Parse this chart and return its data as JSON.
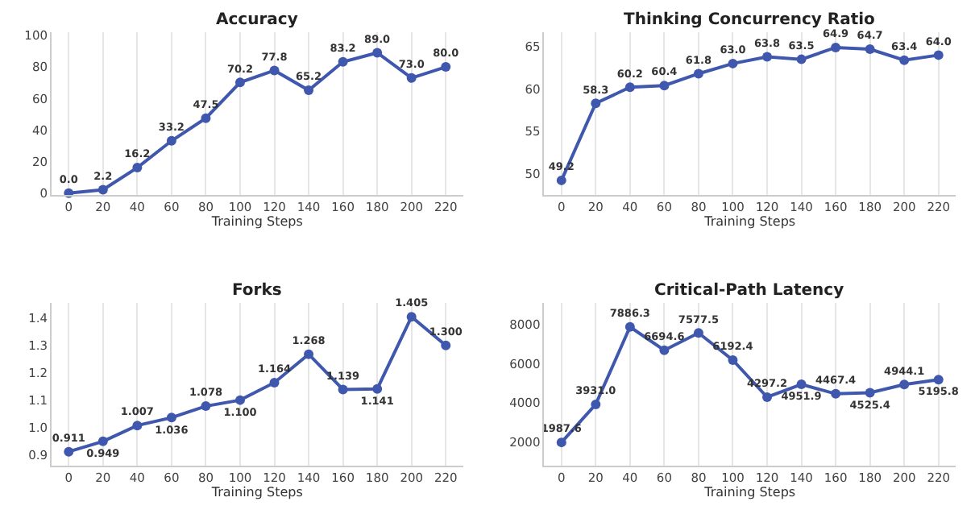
{
  "chart_data": [
    {
      "type": "line",
      "title": "Accuracy",
      "xlabel": "Training Steps",
      "x": [
        0,
        20,
        40,
        60,
        80,
        100,
        120,
        140,
        160,
        180,
        200,
        220
      ],
      "xlim": [
        -10,
        230
      ],
      "xticks": [
        0,
        20,
        40,
        60,
        80,
        100,
        120,
        140,
        160,
        180,
        200,
        220
      ],
      "ylim": [
        -1,
        102
      ],
      "yticks": [
        0,
        20,
        40,
        60,
        80,
        100
      ],
      "grid": "x",
      "marker": "circle",
      "line_style": "solid",
      "color": "#3f58ae",
      "values": [
        0.0,
        2.2,
        16.2,
        33.2,
        47.5,
        70.2,
        77.8,
        65.2,
        83.2,
        89.0,
        73.0,
        80.0
      ],
      "value_labels": [
        "0.0",
        "2.2",
        "16.2",
        "33.2",
        "47.5",
        "70.2",
        "77.8",
        "65.2",
        "83.2",
        "89.0",
        "73.0",
        "80.0"
      ]
    },
    {
      "type": "line",
      "title": "Thinking Concurrency Ratio",
      "xlabel": "Training Steps",
      "x": [
        0,
        20,
        40,
        60,
        80,
        100,
        120,
        140,
        160,
        180,
        200,
        220
      ],
      "xlim": [
        -10,
        230
      ],
      "xticks": [
        0,
        20,
        40,
        60,
        80,
        100,
        120,
        140,
        160,
        180,
        200,
        220
      ],
      "ylim": [
        47.5,
        66.7
      ],
      "yticks": [
        50,
        55,
        60,
        65
      ],
      "grid": "x",
      "marker": "circle",
      "line_style": "solid",
      "color": "#3f58ae",
      "values": [
        49.2,
        58.3,
        60.2,
        60.4,
        61.8,
        63.0,
        63.8,
        63.5,
        64.9,
        64.7,
        63.4,
        64.0
      ],
      "value_labels": [
        "49.2",
        "58.3",
        "60.2",
        "60.4",
        "61.8",
        "63.0",
        "63.8",
        "63.5",
        "64.9",
        "64.7",
        "63.4",
        "64.0"
      ]
    },
    {
      "type": "line",
      "title": "Forks",
      "xlabel": "Training Steps",
      "x": [
        0,
        20,
        40,
        60,
        80,
        100,
        120,
        140,
        160,
        180,
        200,
        220
      ],
      "xlim": [
        -10,
        230
      ],
      "xticks": [
        0,
        20,
        40,
        60,
        80,
        100,
        120,
        140,
        160,
        180,
        200,
        220
      ],
      "ylim": [
        0.86,
        1.455
      ],
      "yticks": [
        {
          "value": 0.9,
          "label": "0.9"
        },
        {
          "value": 1.0,
          "label": "1.0"
        },
        {
          "value": 1.1,
          "label": "1.1"
        },
        {
          "value": 1.2,
          "label": "1.2"
        },
        {
          "value": 1.3,
          "label": "1.3"
        },
        {
          "value": 1.4,
          "label": "1.4"
        }
      ],
      "grid": "x",
      "marker": "circle",
      "line_style": "solid",
      "color": "#3f58ae",
      "values": [
        0.911,
        0.949,
        1.007,
        1.036,
        1.078,
        1.1,
        1.164,
        1.268,
        1.139,
        1.141,
        1.405,
        1.3
      ],
      "value_labels": [
        "0.911",
        "0.949",
        "1.007",
        "1.036",
        "1.078",
        "1.100",
        "1.164",
        "1.268",
        "1.139",
        "1.141",
        "1.405",
        "1.300"
      ]
    },
    {
      "type": "line",
      "title": "Critical-Path Latency",
      "xlabel": "Training Steps",
      "x": [
        0,
        20,
        40,
        60,
        80,
        100,
        120,
        140,
        160,
        180,
        200,
        220
      ],
      "xlim": [
        -10,
        230
      ],
      "xticks": [
        0,
        20,
        40,
        60,
        80,
        100,
        120,
        140,
        160,
        180,
        200,
        220
      ],
      "ylim": [
        800,
        9100
      ],
      "yticks": [
        2000,
        4000,
        6000,
        8000
      ],
      "grid": "x",
      "marker": "circle",
      "line_style": "solid",
      "color": "#3f58ae",
      "values": [
        1987.6,
        3931.0,
        7886.3,
        6694.6,
        7577.5,
        6192.4,
        4297.2,
        4951.9,
        4467.4,
        4525.4,
        4944.1,
        5195.8
      ],
      "value_labels": [
        "1987.6",
        "3931.0",
        "7886.3",
        "6694.6",
        "7577.5",
        "6192.4",
        "4297.2",
        "4951.9",
        "4467.4",
        "4525.4",
        "4944.1",
        "5195.8"
      ]
    }
  ]
}
